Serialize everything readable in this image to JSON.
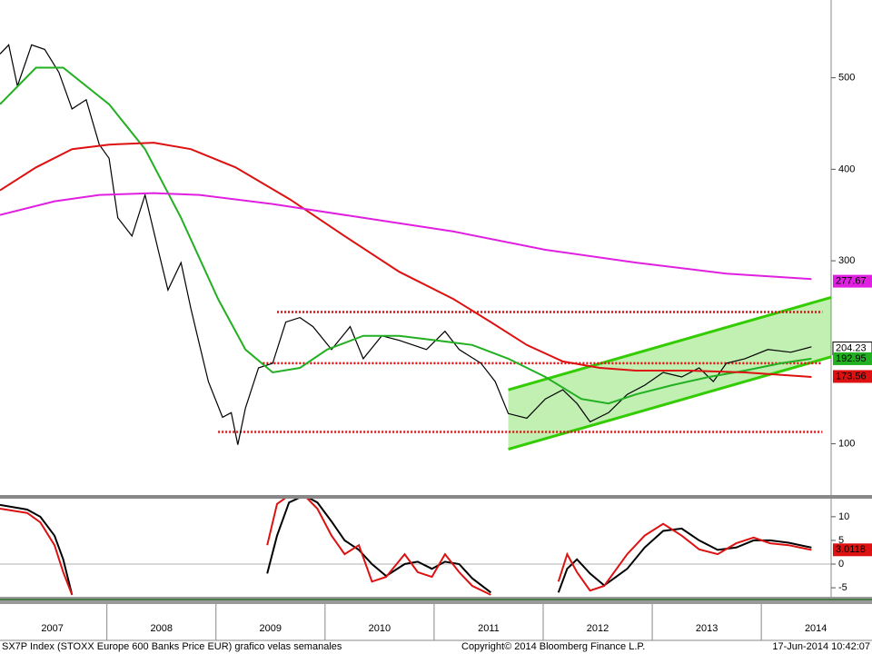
{
  "chart_data": [
    {
      "type": "line",
      "xlim": [
        2007.02,
        2014.64
      ],
      "ylim": [
        41,
        585
      ],
      "yticks": [
        100,
        300,
        400,
        500
      ],
      "xticks": [
        {
          "value": 2007.5,
          "label": "2007"
        },
        {
          "value": 2008.5,
          "label": "2008"
        },
        {
          "value": 2009.5,
          "label": "2009"
        },
        {
          "value": 2010.5,
          "label": "2010"
        },
        {
          "value": 2011.5,
          "label": "2011"
        },
        {
          "value": 2012.5,
          "label": "2012"
        },
        {
          "value": 2013.5,
          "label": "2013"
        },
        {
          "value": 2014.5,
          "label": "2014"
        }
      ],
      "year_breaks": [
        2008,
        2009,
        2010,
        2011,
        2012,
        2013,
        2014
      ],
      "series": [
        {
          "color": "#000000",
          "last_value": 204.23,
          "x": [
            2007.02,
            2007.1,
            2007.18,
            2007.31,
            2007.43,
            2007.56,
            2007.68,
            2007.81,
            2007.93,
            2008.02,
            2008.1,
            2008.23,
            2008.35,
            2008.48,
            2008.56,
            2008.68,
            2008.77,
            2008.85,
            2008.93,
            2009.06,
            2009.14,
            2009.2,
            2009.27,
            2009.39,
            2009.52,
            2009.64,
            2009.77,
            2009.89,
            2010.06,
            2010.23,
            2010.35,
            2010.52,
            2010.68,
            2010.93,
            2011.1,
            2011.23,
            2011.43,
            2011.56,
            2011.68,
            2011.85,
            2012.02,
            2012.18,
            2012.31,
            2012.43,
            2012.6,
            2012.77,
            2012.93,
            2013.1,
            2013.27,
            2013.43,
            2013.56,
            2013.68,
            2013.85,
            2014.06,
            2014.27,
            2014.46
          ],
          "values": [
            526,
            536,
            491,
            536,
            531,
            506,
            466,
            476,
            427,
            412,
            347,
            327,
            372,
            307,
            268,
            298,
            248,
            208,
            168,
            129,
            134,
            99,
            139,
            183,
            188,
            233,
            238,
            228,
            203,
            228,
            193,
            218,
            213,
            203,
            223,
            203,
            188,
            168,
            133,
            128,
            149,
            159,
            144,
            124,
            134,
            154,
            164,
            178,
            173,
            183,
            168,
            188,
            193,
            203,
            200,
            206
          ]
        },
        {
          "color": "#22b022",
          "last_value": 192.95,
          "x": [
            2007.02,
            2007.35,
            2007.6,
            2008.02,
            2008.35,
            2008.68,
            2009.02,
            2009.27,
            2009.52,
            2009.77,
            2010.02,
            2010.35,
            2010.68,
            2011.02,
            2011.35,
            2011.68,
            2012.02,
            2012.35,
            2012.6,
            2012.85,
            2013.18,
            2013.52,
            2013.85,
            2014.18,
            2014.46
          ],
          "values": [
            471,
            511,
            511,
            471,
            422,
            347,
            258,
            203,
            178,
            183,
            203,
            218,
            218,
            213,
            208,
            193,
            173,
            149,
            144,
            154,
            164,
            173,
            180,
            188,
            193
          ]
        },
        {
          "color": "#dd1111",
          "last_value": 173.56,
          "x": [
            2007.02,
            2007.35,
            2007.68,
            2008.02,
            2008.43,
            2008.77,
            2009.18,
            2009.68,
            2010.18,
            2010.68,
            2011.18,
            2011.52,
            2011.85,
            2012.18,
            2012.52,
            2012.85,
            2013.35,
            2013.85,
            2014.46
          ],
          "values": [
            377,
            402,
            422,
            427,
            429,
            422,
            402,
            367,
            327,
            288,
            258,
            233,
            208,
            190,
            183,
            180,
            180,
            178,
            173
          ]
        },
        {
          "color": "#e020e0",
          "last_value": 277.67,
          "x": [
            2007.02,
            2007.52,
            2007.93,
            2008.43,
            2008.85,
            2009.52,
            2010.35,
            2011.18,
            2012.02,
            2012.85,
            2013.68,
            2014.46
          ],
          "values": [
            350,
            365,
            372,
            374,
            372,
            362,
            347,
            332,
            312,
            298,
            286,
            280
          ]
        }
      ],
      "levels": [
        {
          "value": 244,
          "x": [
            2009.56,
            2014.56
          ],
          "color": "#dd1111"
        },
        {
          "value": 188,
          "x": [
            2009.43,
            2014.56
          ],
          "color": "#dd1111"
        },
        {
          "value": 113,
          "x": [
            2009.02,
            2014.56
          ],
          "color": "#dd1111"
        }
      ],
      "channel": {
        "x": [
          2011.68,
          2014.64
        ],
        "upper": [
          159,
          260
        ],
        "lower": [
          94,
          195
        ],
        "color": "#33cc00"
      }
    },
    {
      "type": "line",
      "xlim": [
        2007.02,
        2014.64
      ],
      "ylim": [
        -6.9,
        14
      ],
      "yticks": [
        10,
        5,
        0,
        -5
      ],
      "series": [
        {
          "color": "#000000",
          "x": [
            2007.02,
            2007.27,
            2007.39,
            2007.52,
            2007.6,
            2007.68,
            2008.5,
            2009.47,
            2009.56,
            2009.67,
            2009.81,
            2009.93,
            2010.06,
            2010.18,
            2010.31,
            2010.43,
            2010.56,
            2010.73,
            2010.85,
            2010.98,
            2011.1,
            2011.23,
            2011.35,
            2011.52,
            2011.8,
            2012.14,
            2012.22,
            2012.31,
            2012.43,
            2012.56,
            2012.77,
            2012.93,
            2013.1,
            2013.27,
            2013.43,
            2013.6,
            2013.77,
            2013.93,
            2014.08,
            2014.25,
            2014.46
          ],
          "values": [
            12.5,
            11.5,
            10,
            6,
            1,
            -6.5,
            null,
            -2,
            6,
            13,
            14.5,
            13,
            9,
            5,
            3,
            0,
            -2.5,
            0,
            0.5,
            -1,
            0.5,
            0,
            -3,
            -6,
            null,
            -6,
            -1,
            1,
            -2,
            -4.5,
            -1,
            3.5,
            7,
            7.5,
            5,
            3,
            3.5,
            5,
            5,
            4.5,
            3.5
          ]
        },
        {
          "color": "#dd1111",
          "last_value": 3.0118,
          "x": [
            2007.02,
            2007.27,
            2007.39,
            2007.52,
            2007.6,
            2007.68,
            2008.5,
            2009.47,
            2009.56,
            2009.67,
            2009.81,
            2009.93,
            2010.06,
            2010.18,
            2010.31,
            2010.43,
            2010.56,
            2010.73,
            2010.85,
            2010.98,
            2011.1,
            2011.23,
            2011.35,
            2011.52,
            2011.8,
            2012.14,
            2012.22,
            2012.31,
            2012.43,
            2012.56,
            2012.77,
            2012.93,
            2013.1,
            2013.27,
            2013.43,
            2013.6,
            2013.77,
            2013.93,
            2014.08,
            2014.25,
            2014.46
          ],
          "values": [
            11.7,
            10.8,
            8.8,
            4,
            -1.7,
            -6.5,
            null,
            4,
            12.7,
            14.5,
            14.5,
            11.7,
            6,
            2.1,
            4,
            -3.7,
            -2.7,
            2.1,
            -1.7,
            -2.7,
            2.1,
            -1.7,
            -4.6,
            -6.5,
            null,
            -3.7,
            2.1,
            -1.7,
            -5.6,
            -4.6,
            2.1,
            6,
            8.5,
            6,
            3.1,
            2.1,
            4.4,
            5.6,
            4.4,
            4,
            3.0
          ]
        }
      ]
    }
  ],
  "footer": {
    "left": "SX7P Index (STOXX Europe 600 Banks Price EUR) grafico velas semanales",
    "center": "Copyright© 2014 Bloomberg Finance L.P.",
    "right": "17-Jun-2014 10:42:07"
  }
}
